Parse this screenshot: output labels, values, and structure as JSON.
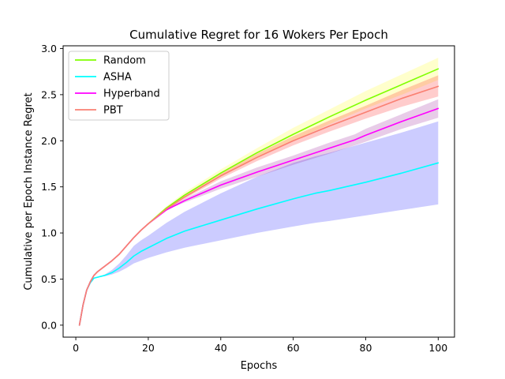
{
  "chart_data": {
    "type": "line",
    "title": "Cumulative Regret for 16 Wokers Per Epoch",
    "xlabel": "Epochs",
    "ylabel": "Cumulative per Epoch Instance Regret",
    "xlim": [
      -3.5,
      104.5
    ],
    "ylim": [
      -0.13,
      3.03
    ],
    "xticks": [
      0,
      20,
      40,
      60,
      80,
      100
    ],
    "yticks": [
      0.0,
      0.5,
      1.0,
      1.5,
      2.0,
      2.5,
      3.0
    ],
    "ytick_labels": [
      "0.0",
      "0.5",
      "1.0",
      "1.5",
      "2.0",
      "2.5",
      "3.0"
    ],
    "grid": false,
    "legend_position": "top-left",
    "series": [
      {
        "name": "Random",
        "color": "#7fff00",
        "band_color": "#ffff00",
        "x": [
          1,
          2,
          3,
          4,
          5,
          6,
          8,
          10,
          12,
          14,
          16,
          18,
          20,
          25,
          30,
          40,
          50,
          60,
          70,
          80,
          90,
          100
        ],
        "y": [
          0.0,
          0.22,
          0.38,
          0.47,
          0.54,
          0.58,
          0.64,
          0.7,
          0.77,
          0.86,
          0.95,
          1.03,
          1.1,
          1.27,
          1.41,
          1.65,
          1.87,
          2.07,
          2.26,
          2.44,
          2.61,
          2.78
        ],
        "band_low": [
          0.0,
          0.22,
          0.38,
          0.47,
          0.54,
          0.58,
          0.64,
          0.7,
          0.77,
          0.86,
          0.95,
          1.03,
          1.09,
          1.25,
          1.38,
          1.61,
          1.81,
          2.0,
          2.18,
          2.35,
          2.5,
          2.66
        ],
        "band_high": [
          0.0,
          0.22,
          0.38,
          0.47,
          0.54,
          0.58,
          0.64,
          0.7,
          0.77,
          0.86,
          0.95,
          1.03,
          1.11,
          1.29,
          1.44,
          1.69,
          1.92,
          2.14,
          2.34,
          2.54,
          2.72,
          2.9
        ]
      },
      {
        "name": "ASHA",
        "color": "#00ffff",
        "band_color": "#0000ff",
        "x": [
          1,
          2,
          3,
          4,
          5,
          6,
          8,
          10,
          12,
          14,
          16,
          18,
          20,
          25,
          30,
          40,
          50,
          60,
          66,
          70,
          80,
          90,
          100
        ],
        "y": [
          0.0,
          0.22,
          0.38,
          0.46,
          0.51,
          0.52,
          0.54,
          0.57,
          0.62,
          0.68,
          0.75,
          0.8,
          0.84,
          0.94,
          1.02,
          1.14,
          1.26,
          1.37,
          1.43,
          1.46,
          1.55,
          1.65,
          1.76
        ],
        "band_low": [
          0.0,
          0.22,
          0.38,
          0.46,
          0.51,
          0.52,
          0.53,
          0.55,
          0.58,
          0.62,
          0.67,
          0.7,
          0.73,
          0.79,
          0.84,
          0.92,
          1.0,
          1.07,
          1.11,
          1.13,
          1.19,
          1.25,
          1.31
        ],
        "band_high": [
          0.0,
          0.22,
          0.38,
          0.46,
          0.51,
          0.52,
          0.55,
          0.6,
          0.67,
          0.76,
          0.86,
          0.92,
          0.97,
          1.11,
          1.23,
          1.43,
          1.61,
          1.76,
          1.83,
          1.87,
          1.98,
          2.09,
          2.21
        ]
      },
      {
        "name": "Hyperband",
        "color": "#ff00ff",
        "band_color": "#8b008b",
        "x": [
          1,
          2,
          3,
          4,
          5,
          6,
          8,
          10,
          12,
          14,
          16,
          18,
          20,
          25,
          30,
          40,
          50,
          60,
          70,
          77,
          80,
          90,
          100
        ],
        "y": [
          0.0,
          0.22,
          0.38,
          0.47,
          0.54,
          0.58,
          0.64,
          0.7,
          0.77,
          0.86,
          0.95,
          1.03,
          1.1,
          1.25,
          1.35,
          1.52,
          1.66,
          1.79,
          1.92,
          2.01,
          2.06,
          2.21,
          2.35
        ],
        "band_low": [
          0.0,
          0.22,
          0.38,
          0.47,
          0.54,
          0.58,
          0.64,
          0.7,
          0.77,
          0.86,
          0.95,
          1.03,
          1.1,
          1.25,
          1.33,
          1.48,
          1.61,
          1.74,
          1.86,
          1.95,
          1.99,
          2.13,
          2.25
        ],
        "band_high": [
          0.0,
          0.22,
          0.38,
          0.47,
          0.54,
          0.58,
          0.64,
          0.7,
          0.77,
          0.86,
          0.95,
          1.03,
          1.1,
          1.26,
          1.37,
          1.56,
          1.71,
          1.84,
          1.98,
          2.07,
          2.13,
          2.29,
          2.45
        ]
      },
      {
        "name": "PBT",
        "color": "#fa8072",
        "band_color": "#ff0000",
        "x": [
          1,
          2,
          3,
          4,
          5,
          6,
          8,
          10,
          12,
          14,
          16,
          18,
          20,
          25,
          30,
          40,
          50,
          60,
          70,
          80,
          90,
          100
        ],
        "y": [
          0.0,
          0.22,
          0.38,
          0.47,
          0.54,
          0.58,
          0.64,
          0.7,
          0.77,
          0.86,
          0.95,
          1.03,
          1.1,
          1.26,
          1.39,
          1.62,
          1.82,
          2.0,
          2.16,
          2.31,
          2.46,
          2.59
        ],
        "band_low": [
          0.0,
          0.22,
          0.38,
          0.47,
          0.54,
          0.58,
          0.64,
          0.7,
          0.77,
          0.86,
          0.95,
          1.03,
          1.1,
          1.25,
          1.37,
          1.59,
          1.78,
          1.95,
          2.1,
          2.24,
          2.37,
          2.48
        ],
        "band_high": [
          0.0,
          0.22,
          0.38,
          0.47,
          0.54,
          0.58,
          0.64,
          0.7,
          0.77,
          0.86,
          0.95,
          1.03,
          1.1,
          1.27,
          1.41,
          1.65,
          1.86,
          2.05,
          2.22,
          2.38,
          2.55,
          2.71
        ]
      }
    ]
  }
}
